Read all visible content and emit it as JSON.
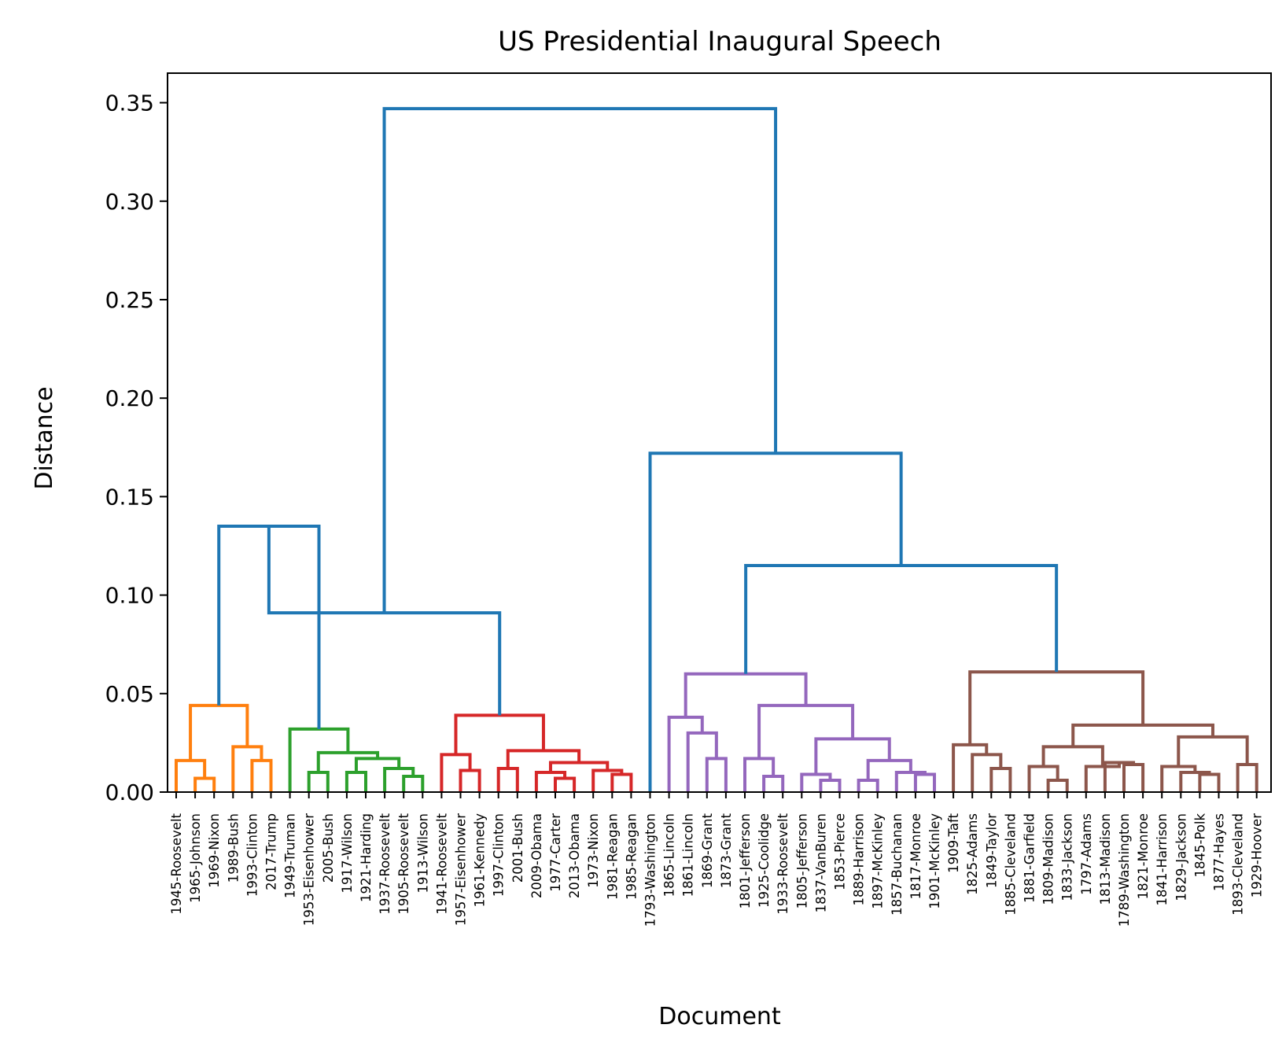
{
  "chart_data": {
    "type": "dendrogram",
    "title": "US Presidential Inaugural Speech",
    "xlabel": "Document",
    "ylabel": "Distance",
    "ylim": [
      0,
      0.365
    ],
    "yticks": [
      "0.00",
      "0.05",
      "0.10",
      "0.15",
      "0.20",
      "0.25",
      "0.30",
      "0.35"
    ],
    "ytick_values": [
      0,
      0.05,
      0.1,
      0.15,
      0.2,
      0.25,
      0.3,
      0.35
    ],
    "grid": false,
    "colors": {
      "link": "#1f77b4",
      "orange": "#ff7f0e",
      "green": "#2ca02c",
      "red": "#d62728",
      "purple": "#9467bd",
      "brown": "#8c564b"
    },
    "leaves": [
      "1945-Roosevelt",
      "1965-Johnson",
      "1969-Nixon",
      "1989-Bush",
      "1993-Clinton",
      "2017-Trump",
      "1949-Truman",
      "1953-Eisenhower",
      "2005-Bush",
      "1917-Wilson",
      "1921-Harding",
      "1937-Roosevelt",
      "1905-Roosevelt",
      "1913-Wilson",
      "1941-Roosevelt",
      "1957-Eisenhower",
      "1961-Kennedy",
      "1997-Clinton",
      "2001-Bush",
      "2009-Obama",
      "1977-Carter",
      "2013-Obama",
      "1973-Nixon",
      "1981-Reagan",
      "1985-Reagan",
      "1793-Washington",
      "1865-Lincoln",
      "1861-Lincoln",
      "1869-Grant",
      "1873-Grant",
      "1801-Jefferson",
      "1925-Coolidge",
      "1933-Roosevelt",
      "1805-Jefferson",
      "1837-VanBuren",
      "1853-Pierce",
      "1889-Harrison",
      "1897-McKinley",
      "1857-Buchanan",
      "1817-Monroe",
      "1901-McKinley",
      "1909-Taft",
      "1825-Adams",
      "1849-Taylor",
      "1885-Cleveland",
      "1881-Garfield",
      "1809-Madison",
      "1833-Jackson",
      "1797-Adams",
      "1813-Madison",
      "1789-Washington",
      "1821-Monroe",
      "1841-Harrison",
      "1829-Jackson",
      "1845-Polk",
      "1877-Hayes",
      "1893-Cleveland",
      "1929-Hoover"
    ],
    "merges": [
      {
        "a": 1,
        "b": 2,
        "h": 0.007,
        "c": "orange"
      },
      {
        "a": 0,
        "b": "m0",
        "h": 0.016,
        "c": "orange"
      },
      {
        "a": 4,
        "b": 5,
        "h": 0.016,
        "c": "orange"
      },
      {
        "a": 3,
        "b": "m2",
        "h": 0.023,
        "c": "orange"
      },
      {
        "a": "m1",
        "b": "m3",
        "h": 0.044,
        "c": "orange"
      },
      {
        "a": 7,
        "b": 8,
        "h": 0.01,
        "c": "green"
      },
      {
        "a": 9,
        "b": 10,
        "h": 0.01,
        "c": "green"
      },
      {
        "a": 12,
        "b": 13,
        "h": 0.008,
        "c": "green"
      },
      {
        "a": 11,
        "b": "m7",
        "h": 0.012,
        "c": "green"
      },
      {
        "a": "m6",
        "b": "m8",
        "h": 0.017,
        "c": "green"
      },
      {
        "a": "m5",
        "b": "m9",
        "h": 0.02,
        "c": "green"
      },
      {
        "a": 6,
        "b": "m10",
        "h": 0.032,
        "c": "green"
      },
      {
        "a": 15,
        "b": 16,
        "h": 0.011,
        "c": "red"
      },
      {
        "a": 14,
        "b": "m12",
        "h": 0.019,
        "c": "red"
      },
      {
        "a": 17,
        "b": 18,
        "h": 0.012,
        "c": "red"
      },
      {
        "a": 20,
        "b": 21,
        "h": 0.007,
        "c": "red"
      },
      {
        "a": 19,
        "b": "m15",
        "h": 0.01,
        "c": "red"
      },
      {
        "a": 23,
        "b": 24,
        "h": 0.009,
        "c": "red"
      },
      {
        "a": 22,
        "b": "m17",
        "h": 0.011,
        "c": "red"
      },
      {
        "a": "m16",
        "b": "m18",
        "h": 0.015,
        "c": "red"
      },
      {
        "a": "m14",
        "b": "m19",
        "h": 0.021,
        "c": "red"
      },
      {
        "a": "m13",
        "b": "m20",
        "h": 0.039,
        "c": "red"
      },
      {
        "a": 28,
        "b": 29,
        "h": 0.017,
        "c": "purple"
      },
      {
        "a": 27,
        "b": "m22",
        "h": 0.03,
        "c": "purple"
      },
      {
        "a": 26,
        "b": "m23",
        "h": 0.038,
        "c": "purple"
      },
      {
        "a": 31,
        "b": 32,
        "h": 0.008,
        "c": "purple"
      },
      {
        "a": 30,
        "b": "m25",
        "h": 0.017,
        "c": "purple"
      },
      {
        "a": 34,
        "b": 35,
        "h": 0.006,
        "c": "purple"
      },
      {
        "a": 33,
        "b": "m27",
        "h": 0.009,
        "c": "purple"
      },
      {
        "a": 36,
        "b": 37,
        "h": 0.006,
        "c": "purple"
      },
      {
        "a": 39,
        "b": 40,
        "h": 0.009,
        "c": "purple"
      },
      {
        "a": 38,
        "b": "m30",
        "h": 0.01,
        "c": "purple"
      },
      {
        "a": "m29",
        "b": "m31",
        "h": 0.016,
        "c": "purple"
      },
      {
        "a": "m28",
        "b": "m32",
        "h": 0.027,
        "c": "purple"
      },
      {
        "a": "m26",
        "b": "m33",
        "h": 0.044,
        "c": "purple"
      },
      {
        "a": "m24",
        "b": "m34",
        "h": 0.06,
        "c": "purple"
      },
      {
        "a": 43,
        "b": 44,
        "h": 0.012,
        "c": "brown"
      },
      {
        "a": 42,
        "b": "m36",
        "h": 0.019,
        "c": "brown"
      },
      {
        "a": 41,
        "b": "m37",
        "h": 0.024,
        "c": "brown"
      },
      {
        "a": 46,
        "b": 47,
        "h": 0.006,
        "c": "brown"
      },
      {
        "a": 45,
        "b": "m39",
        "h": 0.013,
        "c": "brown"
      },
      {
        "a": 50,
        "b": 51,
        "h": 0.014,
        "c": "brown"
      },
      {
        "a": 49,
        "b": "m41",
        "h": 0.015,
        "c": "brown"
      },
      {
        "a": 48,
        "b": "m42",
        "h": 0.013,
        "c": "brown"
      },
      {
        "a": "m40",
        "b": "m43",
        "h": 0.023,
        "c": "brown"
      },
      {
        "a": 54,
        "b": 55,
        "h": 0.009,
        "c": "brown"
      },
      {
        "a": 53,
        "b": "m45",
        "h": 0.01,
        "c": "brown"
      },
      {
        "a": 52,
        "b": "m46",
        "h": 0.013,
        "c": "brown"
      },
      {
        "a": 56,
        "b": 57,
        "h": 0.014,
        "c": "brown"
      },
      {
        "a": "m47",
        "b": "m48",
        "h": 0.028,
        "c": "brown"
      },
      {
        "a": "m44",
        "b": "m49",
        "h": 0.034,
        "c": "brown"
      },
      {
        "a": "m38",
        "b": "m50",
        "h": 0.061,
        "c": "brown"
      },
      {
        "a": "m4",
        "b": "m11",
        "h": 0.135,
        "c": "link"
      },
      {
        "a": "m52",
        "b": "m21",
        "h": 0.091,
        "c": "link"
      },
      {
        "a": "m35",
        "b": "m51",
        "h": 0.115,
        "c": "link"
      },
      {
        "a": 25,
        "b": "m54",
        "h": 0.172,
        "c": "link"
      },
      {
        "a": "m53",
        "b": "m55",
        "h": 0.347,
        "c": "link"
      }
    ]
  }
}
